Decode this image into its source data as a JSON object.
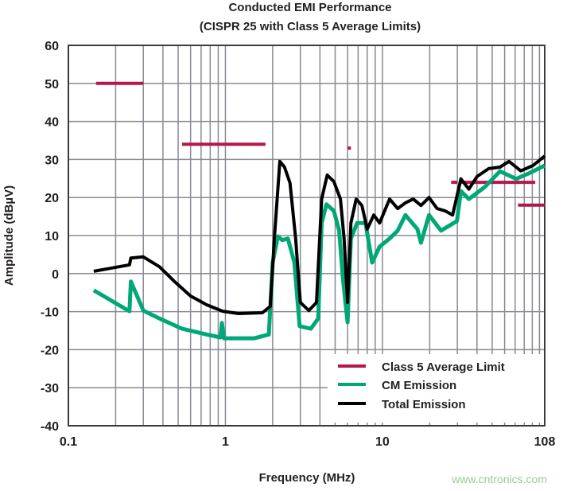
{
  "chart_data": {
    "type": "line",
    "title": "Conducted EMI Performance",
    "subtitle": "(CISPR 25 with Class 5 Average Limits)",
    "xlabel": "Frequency (MHz)",
    "ylabel": "Amplitude (dBµV)",
    "xscale": "log",
    "xlim": [
      0.1,
      108
    ],
    "ylim": [
      -40,
      60
    ],
    "xticks": [
      {
        "v": 0.1,
        "label": "0.1"
      },
      {
        "v": 1,
        "label": "1"
      },
      {
        "v": 10,
        "label": "10"
      },
      {
        "v": 108,
        "label": "108"
      }
    ],
    "yticks": [
      60,
      50,
      40,
      30,
      20,
      10,
      0,
      -10,
      -20,
      -30,
      -40
    ],
    "grid": true,
    "legend_position": "bottom-right",
    "colors": {
      "limit": "#b5174a",
      "cm": "#00a878",
      "total": "#000000",
      "grid": "#8a8a94"
    },
    "series": [
      {
        "name": "Class 5 Average Limit",
        "kind": "segments",
        "segments": [
          [
            [
              0.15,
              50
            ],
            [
              0.3,
              50
            ]
          ],
          [
            [
              0.53,
              34
            ],
            [
              1.8,
              34
            ]
          ],
          [
            [
              6.0,
              33
            ],
            [
              6.3,
              33
            ]
          ],
          [
            [
              27.4,
              24
            ],
            [
              29.9,
              24
            ]
          ],
          [
            [
              31.6,
              24
            ],
            [
              94,
              24
            ]
          ],
          [
            [
              73,
              18
            ],
            [
              108,
              18
            ]
          ]
        ]
      },
      {
        "name": "CM Emission",
        "x": [
          0.145,
          0.245,
          0.25,
          0.3,
          0.38,
          0.53,
          0.76,
          0.93,
          0.95,
          0.98,
          1.53,
          1.89,
          2.0,
          2.16,
          2.3,
          2.5,
          2.75,
          2.97,
          3.5,
          3.9,
          4.1,
          4.4,
          4.9,
          5.3,
          5.6,
          6.0,
          6.3,
          6.9,
          7.8,
          8.6,
          9.6,
          11.1,
          12.5,
          14,
          16.7,
          17.6,
          19.8,
          23.6,
          29.8,
          31.6,
          35.5,
          45,
          56,
          71,
          85,
          108
        ],
        "y": [
          -4.4,
          -9.9,
          -2.1,
          -9.7,
          -11.8,
          -14.5,
          -16,
          -16.8,
          -13,
          -17,
          -17,
          -16,
          2.9,
          9.8,
          8.8,
          9.2,
          2.9,
          -13.8,
          -14.5,
          -11.8,
          13.3,
          18.2,
          16.5,
          11.3,
          -1.3,
          -12.8,
          9.2,
          13.3,
          13.3,
          2.9,
          7.1,
          9.2,
          11.3,
          15.4,
          11.7,
          8.1,
          15.4,
          11.3,
          13.8,
          21.7,
          19.6,
          22.8,
          26.9,
          24.9,
          26.3,
          28.4
        ]
      },
      {
        "name": "Total Emission",
        "x": [
          0.145,
          0.245,
          0.25,
          0.3,
          0.38,
          0.48,
          0.6,
          0.76,
          0.96,
          1.21,
          1.72,
          1.93,
          2.05,
          2.22,
          2.38,
          2.58,
          2.8,
          3.0,
          3.4,
          3.8,
          4.1,
          4.45,
          4.9,
          5.4,
          5.7,
          6.0,
          6.3,
          6.8,
          7.4,
          8.0,
          8.8,
          9.6,
          11.1,
          12.5,
          14,
          15.7,
          17.6,
          19.8,
          22.3,
          25,
          28,
          31.6,
          35.5,
          40,
          47.5,
          56,
          64,
          76,
          91,
          108
        ],
        "y": [
          0.6,
          2.3,
          4.1,
          4.4,
          1.8,
          -2.3,
          -5.9,
          -8.2,
          -9.9,
          -10.5,
          -10.3,
          -8.6,
          9.2,
          29.5,
          28,
          23.8,
          9.2,
          -7.6,
          -9.7,
          -7.6,
          19.6,
          25.9,
          24.2,
          19.6,
          9.2,
          -7.6,
          13.3,
          19.6,
          17.9,
          11.7,
          15.4,
          13.3,
          19.6,
          17.1,
          18.6,
          19.6,
          17.9,
          20,
          17.1,
          16.5,
          15.4,
          24.9,
          22.2,
          25.5,
          27.6,
          28,
          29.5,
          27,
          28.4,
          30.9
        ]
      }
    ]
  },
  "watermark": "www.cntronics.com"
}
